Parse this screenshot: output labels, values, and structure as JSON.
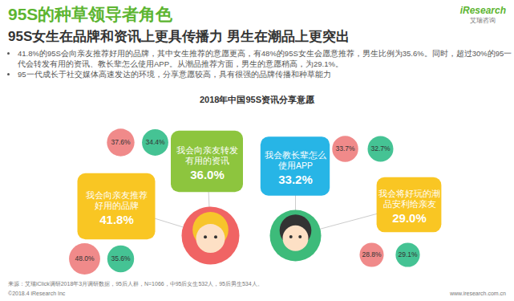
{
  "header": {
    "title": "95S的种草领导者角色",
    "subtitle": "95S女生在品牌和资讯上更具传播力 男生在潮品上更突出",
    "bullets": [
      "41.8%的95S会向亲友推荐好用的品牌，其中女生推荐的意愿更高，有48%的95S女生会愿意推荐，男生比例为35.6%。同时，超过30%的95一代会转发有用的资讯、教长辈怎么使用APP。从潮品推荐方面，男生的意愿稍高，为29.1%。",
      "95一代成长于社交媒体高速发达的环境，分享意愿较高，具有很强的品牌传播和种草能力"
    ],
    "logo": "iResearch",
    "logo_cn": "艾瑞咨询"
  },
  "chart_data": {
    "type": "bubble",
    "title": "2018年中国95S资讯分享意愿",
    "categories": [
      "我会向亲友推荐好用的品牌",
      "我会向亲友转发有用的资讯",
      "我会教长辈怎么使用APP",
      "我会将好玩的潮品安利给亲友"
    ],
    "values": [
      41.8,
      36.0,
      33.2,
      29.0
    ],
    "value_labels": [
      "41.8%",
      "36.0%",
      "33.2%",
      "29.0%"
    ],
    "colors": [
      "#f9c623",
      "#8dc53e",
      "#27b5e6",
      "#f9c623"
    ],
    "series": [
      {
        "color": "#f08a8a",
        "values": [
          48.0,
          37.6,
          33.7,
          28.8
        ],
        "value_labels": [
          "48.0%",
          "37.6%",
          "33.7%",
          "28.8%"
        ]
      },
      {
        "color": "#45c394",
        "values": [
          35.6,
          34.4,
          32.7,
          29.1
        ],
        "value_labels": [
          "35.6%",
          "34.4%",
          "32.7%",
          "29.1%"
        ]
      }
    ],
    "data_labels": true
  },
  "footer": {
    "source": "来源：艾瑞iClick调研2018年3月调研数据，95后人群，N=1066，中95后女生532人，95后男生534人。",
    "copyright": "©2018.4 iResearch Inc",
    "url": "www.iresearch.com.cn"
  }
}
